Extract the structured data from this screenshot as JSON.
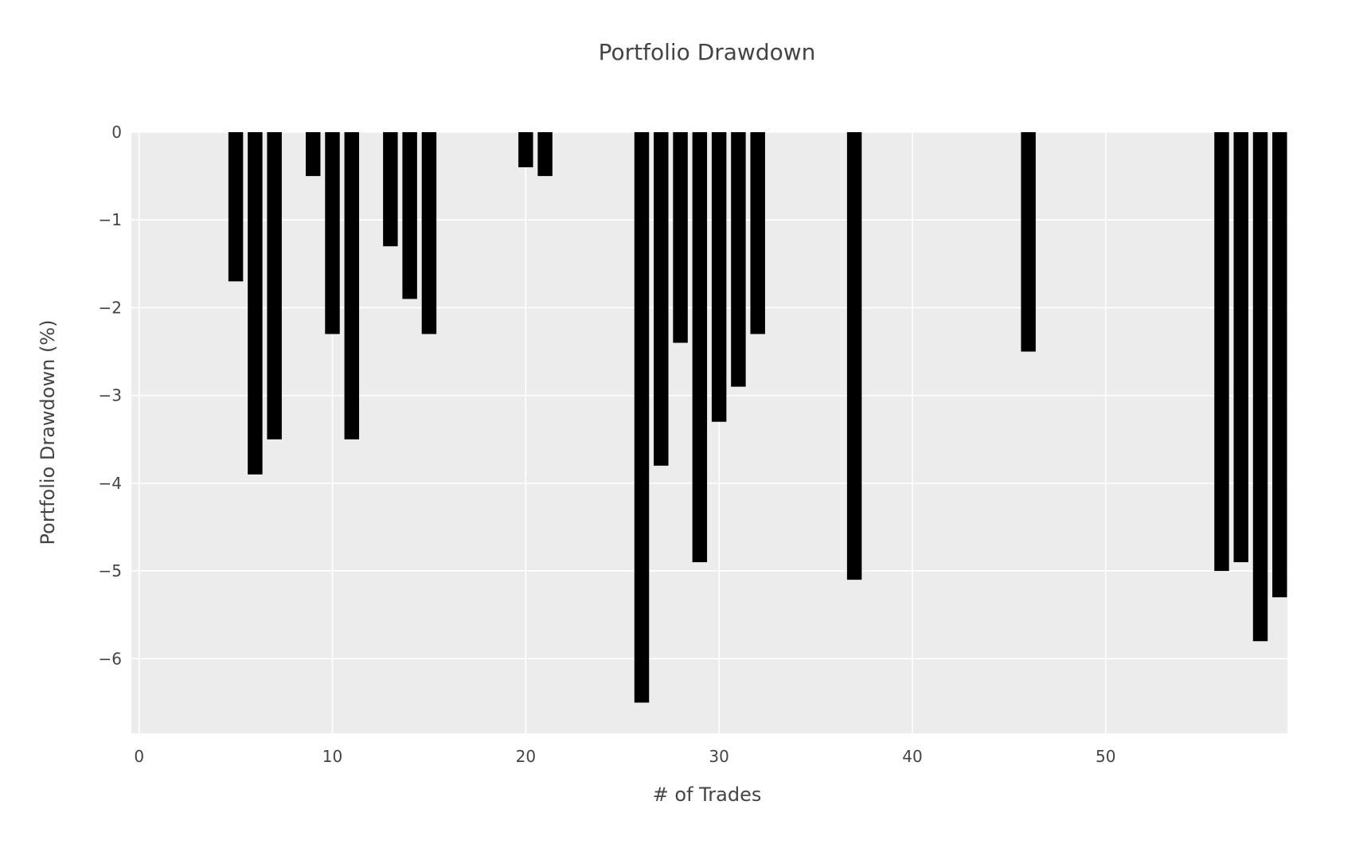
{
  "chart_data": {
    "type": "bar",
    "title": "Portfolio Drawdown",
    "xlabel": "# of Trades",
    "ylabel": "Portfolio Drawdown (%)",
    "xlim": [
      -0.4,
      59.4
    ],
    "ylim": [
      -6.85,
      0
    ],
    "x_ticks": [
      0,
      10,
      20,
      30,
      40,
      50
    ],
    "x_tick_labels": [
      "0",
      "10",
      "20",
      "30",
      "40",
      "50"
    ],
    "y_ticks": [
      0,
      -1,
      -2,
      -3,
      -4,
      -5,
      -6
    ],
    "y_tick_labels": [
      "0",
      "−1",
      "−2",
      "−3",
      "−4",
      "−5",
      "−6"
    ],
    "grid": true,
    "bar_color": "#000000",
    "plot_background": "#ececec",
    "series": [
      {
        "x": [
          5,
          6,
          7,
          9,
          10,
          11,
          13,
          14,
          15,
          20,
          21,
          26,
          27,
          28,
          29,
          30,
          31,
          32,
          37,
          46,
          56,
          57,
          58,
          59
        ],
        "values": [
          -1.7,
          -3.9,
          -3.5,
          -0.5,
          -2.3,
          -3.5,
          -1.3,
          -1.9,
          -2.3,
          -0.4,
          -0.5,
          -6.5,
          -3.8,
          -2.4,
          -4.9,
          -3.3,
          -2.9,
          -2.3,
          -5.1,
          -2.5,
          -5.0,
          -4.9,
          -5.8,
          -5.3
        ]
      }
    ]
  }
}
